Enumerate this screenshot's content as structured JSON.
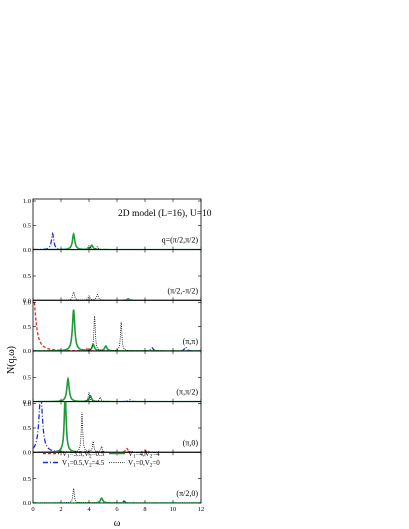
{
  "chart_data": {
    "type": "line",
    "title": "2D model (L=16), U=10",
    "xlabel": "ω",
    "ylabel": "N(q,ω)",
    "xlim": [
      0,
      12
    ],
    "x_ticks": [
      "0",
      "2",
      "4",
      "6",
      "8",
      "10",
      "12"
    ],
    "series": [
      {
        "name": "V1=3.5,V2=0.5",
        "color": "#e8231f",
        "dash": "dashed"
      },
      {
        "name": "V1=0.5,V2=4.5",
        "color": "#1f2ccf",
        "dash": "dash-dot"
      },
      {
        "name": "V1=4,V2=4",
        "color": "#1f9a3a",
        "dash": "solid"
      },
      {
        "name": "V1=0,V2=0",
        "color": "#000000",
        "dash": "dotted"
      }
    ],
    "legend": {
      "placement": "inside bottom panel, top",
      "entries": [
        {
          "sub1": "1",
          "val1": "3.5",
          "sub2": "2",
          "val2": "0.5",
          "color": "#e8231f",
          "dash": "dashed"
        },
        {
          "sub1": "1",
          "val1": "4",
          "sub2": "2",
          "val2": "4",
          "color": "#1f9a3a",
          "dash": "solid"
        },
        {
          "sub1": "1",
          "val1": "0.5",
          "sub2": "2",
          "val2": "4.5",
          "color": "#1f2ccf",
          "dash": "dash-dot"
        },
        {
          "sub1": "1",
          "val1": "0",
          "sub2": "2",
          "val2": "0",
          "color": "#000000",
          "dash": "dotted"
        }
      ]
    },
    "panels": [
      {
        "label": "q=(π/2,π/2)",
        "ylim": [
          0,
          1
        ],
        "y_ticks": [
          "0.0",
          "0.5",
          "1.0"
        ],
        "peaks": [
          {
            "series": 1,
            "w": 1.4,
            "h": 0.33,
            "gamma": 0.1
          },
          {
            "series": 2,
            "w": 2.9,
            "h": 0.32,
            "gamma": 0.1
          },
          {
            "series": 2,
            "w": 4.2,
            "h": 0.09,
            "gamma": 0.1
          },
          {
            "series": 3,
            "w": 4.0,
            "h": 0.08,
            "gamma": 0.08
          },
          {
            "series": 3,
            "w": 4.6,
            "h": 0.06,
            "gamma": 0.08
          }
        ]
      },
      {
        "label": "(π/2,-π/2)",
        "ylim": [
          0,
          1
        ],
        "y_ticks": [
          "0.0",
          "0.5"
        ],
        "peaks": [
          {
            "series": 3,
            "w": 2.9,
            "h": 0.17,
            "gamma": 0.08
          },
          {
            "series": 3,
            "w": 4.0,
            "h": 0.09,
            "gamma": 0.08
          },
          {
            "series": 3,
            "w": 4.6,
            "h": 0.12,
            "gamma": 0.08
          },
          {
            "series": 2,
            "w": 6.8,
            "h": 0.03,
            "gamma": 0.1
          }
        ]
      },
      {
        "label": "(π,π)",
        "ylim": [
          0,
          1
        ],
        "y_ticks": [
          "0.0",
          "0.5",
          "1.0"
        ],
        "peaks": [
          {
            "series": 0,
            "w": 0.0,
            "h": 1.2,
            "gamma": 0.22
          },
          {
            "series": 2,
            "w": 2.9,
            "h": 0.85,
            "gamma": 0.1
          },
          {
            "series": 3,
            "w": 4.4,
            "h": 0.72,
            "gamma": 0.06
          },
          {
            "series": 3,
            "w": 6.3,
            "h": 0.6,
            "gamma": 0.06
          },
          {
            "series": 2,
            "w": 4.3,
            "h": 0.13,
            "gamma": 0.1
          },
          {
            "series": 2,
            "w": 5.2,
            "h": 0.1,
            "gamma": 0.1
          },
          {
            "series": 1,
            "w": 8.5,
            "h": 0.07,
            "gamma": 0.1
          },
          {
            "series": 1,
            "w": 10.9,
            "h": 0.08,
            "gamma": 0.1
          },
          {
            "series": 0,
            "w": 3.8,
            "h": 0.05,
            "gamma": 0.1
          }
        ]
      },
      {
        "label": "(π,π/2)",
        "ylim": [
          0,
          1
        ],
        "y_ticks": [
          "0.0",
          "0.5"
        ],
        "peaks": [
          {
            "series": 2,
            "w": 2.5,
            "h": 0.47,
            "gamma": 0.1
          },
          {
            "series": 2,
            "w": 4.1,
            "h": 0.12,
            "gamma": 0.1
          },
          {
            "series": 3,
            "w": 4.0,
            "h": 0.18,
            "gamma": 0.07
          },
          {
            "series": 3,
            "w": 4.8,
            "h": 0.09,
            "gamma": 0.07
          },
          {
            "series": 1,
            "w": 6.9,
            "h": 0.04,
            "gamma": 0.1
          }
        ]
      },
      {
        "label": "(π,0)",
        "ylim": [
          0,
          1
        ],
        "y_ticks": [
          "0.0",
          "0.5",
          "1.0"
        ],
        "peaks": [
          {
            "series": 1,
            "w": 0.55,
            "h": 1.2,
            "gamma": 0.15
          },
          {
            "series": 2,
            "w": 2.3,
            "h": 1.2,
            "gamma": 0.08
          },
          {
            "series": 3,
            "w": 3.5,
            "h": 0.82,
            "gamma": 0.06
          },
          {
            "series": 3,
            "w": 4.3,
            "h": 0.22,
            "gamma": 0.06
          },
          {
            "series": 3,
            "w": 4.9,
            "h": 0.12,
            "gamma": 0.06
          },
          {
            "series": 0,
            "w": 6.7,
            "h": 0.08,
            "gamma": 0.1
          },
          {
            "series": 0,
            "w": 8.0,
            "h": 0.04,
            "gamma": 0.1
          }
        ]
      },
      {
        "label": "(π/2,0)",
        "ylim": [
          0,
          1
        ],
        "y_ticks": [
          "0.0",
          "0.5"
        ],
        "peaks": [
          {
            "series": 3,
            "w": 2.9,
            "h": 0.3,
            "gamma": 0.06
          },
          {
            "series": 2,
            "w": 4.9,
            "h": 0.1,
            "gamma": 0.1
          },
          {
            "series": 1,
            "w": 6.5,
            "h": 0.04,
            "gamma": 0.1
          }
        ]
      }
    ]
  }
}
